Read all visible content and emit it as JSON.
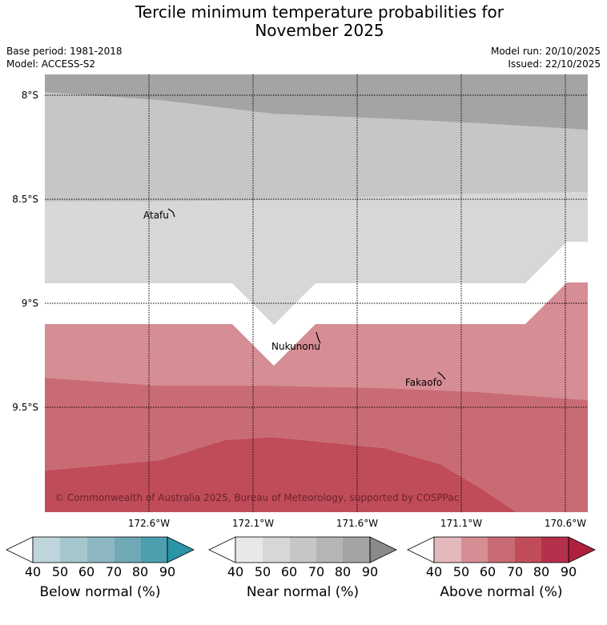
{
  "title_line1": "Tercile minimum temperature probabilities for",
  "title_line2": "November 2025",
  "base_period": "Base period: 1981-2018",
  "model": "Model: ACCESS-S2",
  "model_run": "Model run: 20/10/2025",
  "issued": "Issued: 22/10/2025",
  "map": {
    "lat_labels": [
      "8°S",
      "8.5°S",
      "9°S",
      "9.5°S"
    ],
    "lon_labels": [
      "172.6°W",
      "172.1°W",
      "171.6°W",
      "171.1°W",
      "170.6°W"
    ],
    "places": [
      "Atafu",
      "Nukunonu",
      "Fakaofo"
    ],
    "copyright": "© Commonwealth of Australia 2025, Bureau of Meteorology, supported by COSPPac"
  },
  "colorbars": [
    {
      "label": "Below normal (%)",
      "ticks": [
        "40",
        "50",
        "60",
        "70",
        "80",
        "90"
      ],
      "colors": [
        "#bdd5db",
        "#a6c6cd",
        "#8db8c2",
        "#70a8b5",
        "#4b9fae",
        "#2a95a7"
      ]
    },
    {
      "label": "Near normal (%)",
      "ticks": [
        "40",
        "50",
        "60",
        "70",
        "80",
        "90"
      ],
      "colors": [
        "#e8e8e8",
        "#d7d7d7",
        "#c6c6c6",
        "#b5b5b5",
        "#a4a4a4",
        "#8a8a8a"
      ]
    },
    {
      "label": "Above normal (%)",
      "ticks": [
        "40",
        "50",
        "60",
        "70",
        "80",
        "90"
      ],
      "colors": [
        "#e3b9be",
        "#d68d94",
        "#c96b75",
        "#c04c5a",
        "#b5304a",
        "#b0203e"
      ]
    }
  ]
}
